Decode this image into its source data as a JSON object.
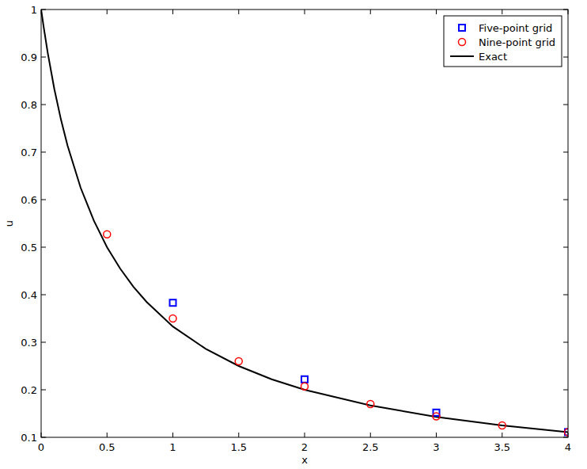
{
  "chart_data": {
    "type": "scatter",
    "x_label": "x",
    "y_label": "u",
    "xlim": [
      0,
      4
    ],
    "ylim": [
      0.1,
      1
    ],
    "xticks": [
      0,
      0.5,
      1,
      1.5,
      2,
      2.5,
      3,
      3.5,
      4
    ],
    "yticks": [
      0.1,
      0.2,
      0.3,
      0.4,
      0.5,
      0.6,
      0.7,
      0.8,
      0.9,
      1
    ],
    "grid": false,
    "legend": "top-right",
    "series": [
      {
        "name": "Five-point grid",
        "type": "scatter",
        "color": "#0000ff",
        "marker": "square",
        "x": [
          1,
          2,
          3,
          4
        ],
        "values": [
          0.383,
          0.222,
          0.152,
          0.111
        ]
      },
      {
        "name": "Nine-point grid",
        "type": "scatter",
        "color": "#ff0000",
        "marker": "circle",
        "x": [
          0.5,
          1,
          1.5,
          2,
          2.5,
          3,
          3.5,
          4
        ],
        "values": [
          0.527,
          0.35,
          0.26,
          0.207,
          0.17,
          0.144,
          0.125,
          0.111
        ]
      },
      {
        "name": "Exact",
        "type": "line",
        "color": "#000000",
        "line_style": "solid",
        "x": [
          0,
          0.02,
          0.05,
          0.1,
          0.15,
          0.2,
          0.3,
          0.4,
          0.5,
          0.6,
          0.7,
          0.8,
          1,
          1.25,
          1.5,
          1.75,
          2,
          2.5,
          3,
          3.5,
          4
        ],
        "values": [
          1,
          0.962,
          0.909,
          0.833,
          0.769,
          0.714,
          0.625,
          0.556,
          0.5,
          0.455,
          0.417,
          0.385,
          0.333,
          0.286,
          0.25,
          0.222,
          0.2,
          0.167,
          0.143,
          0.125,
          0.111
        ]
      }
    ]
  }
}
